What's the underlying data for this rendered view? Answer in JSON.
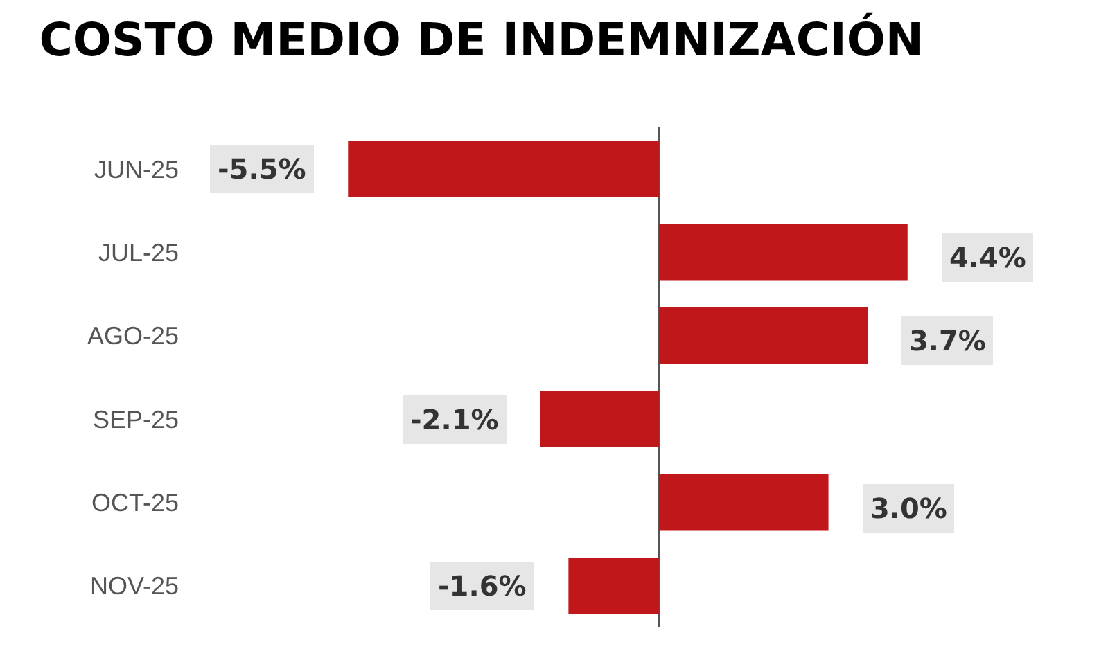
{
  "chart_data": {
    "type": "bar",
    "orientation": "horizontal",
    "title": "COSTO MEDIO DE INDEMNIZACIÓN",
    "categories": [
      "JUN-25",
      "JUL-25",
      "AGO-25",
      "SEP-25",
      "OCT-25",
      "NOV-25"
    ],
    "values": [
      -5.5,
      4.4,
      3.7,
      -2.1,
      3.0,
      -1.6
    ],
    "value_labels": [
      "-5.5%",
      "4.4%",
      "3.7%",
      "-2.1%",
      "3.0%",
      "-1.6%"
    ],
    "color": "#c0171b"
  }
}
